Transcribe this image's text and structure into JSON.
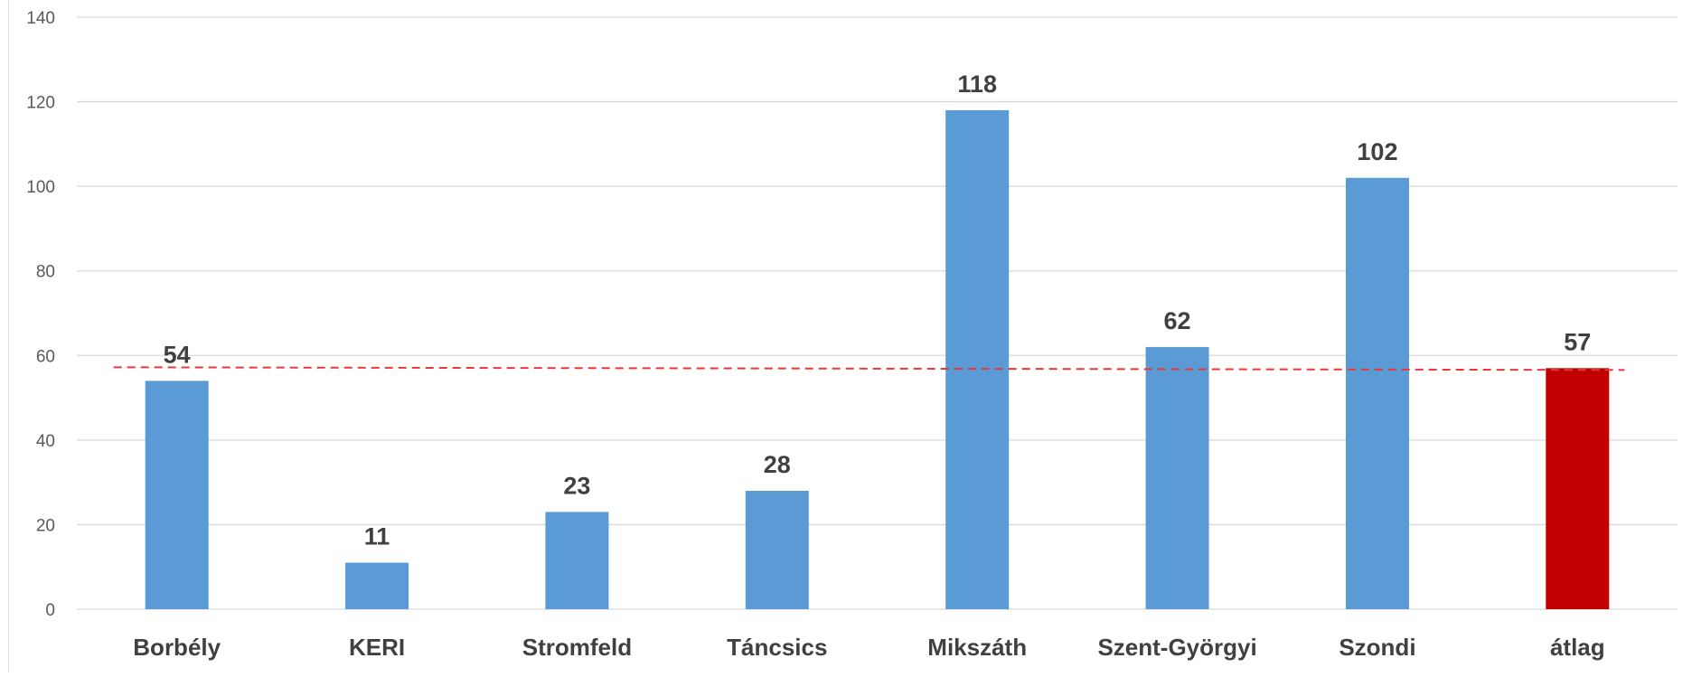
{
  "chart_data": {
    "type": "bar",
    "categories": [
      "Borbély",
      "KERI",
      "Stromfeld",
      "Táncsics",
      "Mikszáth",
      "Szent-Györgyi",
      "Szondi",
      "átlag"
    ],
    "values": [
      54,
      11,
      23,
      28,
      118,
      62,
      102,
      57
    ],
    "ylim": [
      0,
      140
    ],
    "yticks": [
      "0",
      "20",
      "40",
      "60",
      "80",
      "100",
      "120",
      "140"
    ],
    "grid": true,
    "legend": "none",
    "reference_line": {
      "value": 57,
      "style": "dashed",
      "color": "#e8383a"
    },
    "colors": {
      "bar": "#5b9bd5",
      "highlight_bar": "#c00000",
      "highlight_category": "átlag",
      "grid": "#d9d9d9"
    }
  }
}
